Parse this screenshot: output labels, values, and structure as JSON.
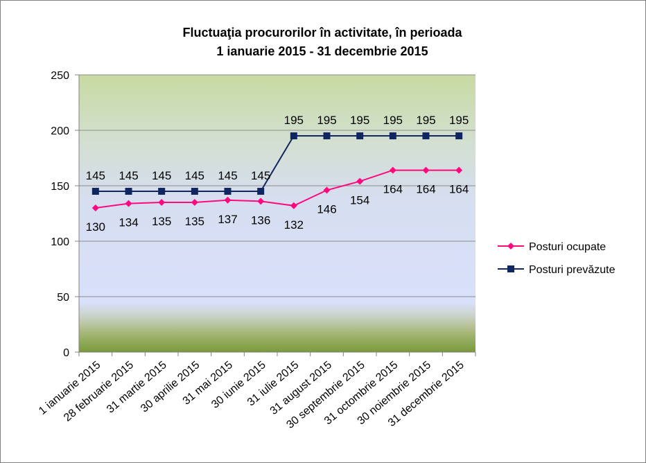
{
  "chart_data": {
    "type": "line",
    "title": [
      "Fluctuaţia procurorilor în activitate, în perioada",
      "1 ianuarie 2015 - 31 decembrie 2015"
    ],
    "xlabel": "",
    "ylabel": "",
    "ylim": [
      0,
      250
    ],
    "yticks": [
      "0",
      "50",
      "100",
      "150",
      "200",
      "250"
    ],
    "grid": true,
    "legend_position": "right",
    "categories": [
      "1 ianuarie 2015",
      "28 februarie 2015",
      "31 martie 2015",
      "30 aprilie 2015",
      "31 mai 2015",
      "30 iunie 2015",
      "31 iulie 2015",
      "31 august 2015",
      "30 septembrie 2015",
      "31 octombrie 2015",
      "30 noiembrie 2015",
      "31 decembrie 2015"
    ],
    "series": [
      {
        "name": "Posturi ocupate",
        "values": [
          130,
          134,
          135,
          135,
          137,
          136,
          132,
          146,
          154,
          164,
          164,
          164
        ],
        "color": "#ff0a7e",
        "marker": "diamond"
      },
      {
        "name": "Posturi prevăzute",
        "values": [
          145,
          145,
          145,
          145,
          145,
          145,
          195,
          195,
          195,
          195,
          195,
          195
        ],
        "color": "#0f2660",
        "marker": "square"
      }
    ]
  }
}
